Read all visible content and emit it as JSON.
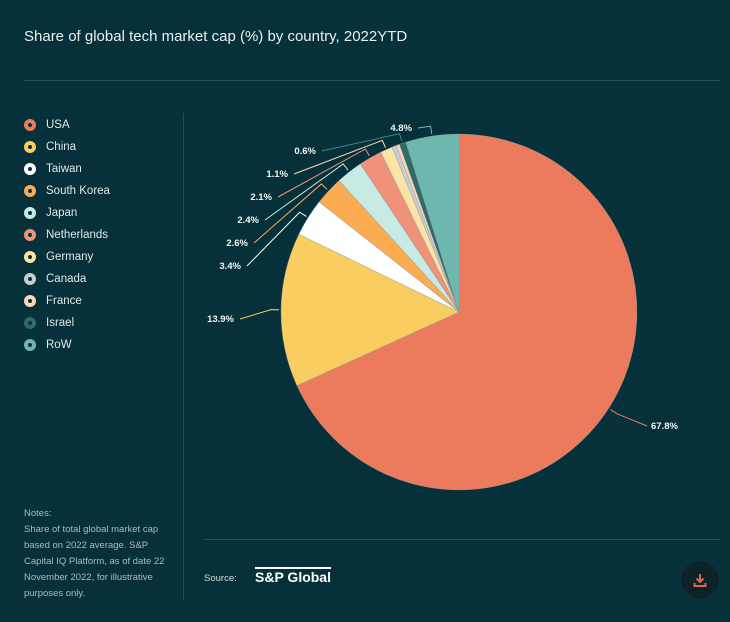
{
  "chart_data": {
    "type": "pie",
    "title": "Share of global tech market cap (%) by country, 2022YTD",
    "legend_position": "left",
    "slices": [
      {
        "name": "USA",
        "value": 67.8,
        "label": "67.8%",
        "color": "#ec7b5d"
      },
      {
        "name": "China",
        "value": 13.9,
        "label": "13.9%",
        "color": "#f9cd5f"
      },
      {
        "name": "Taiwan",
        "value": 3.4,
        "label": "3.4%",
        "color": "#ffffff"
      },
      {
        "name": "South Korea",
        "value": 2.6,
        "label": "2.6%",
        "color": "#fbab52"
      },
      {
        "name": "Japan",
        "value": 2.4,
        "label": "2.4%",
        "color": "#c5ebe4"
      },
      {
        "name": "Netherlands",
        "value": 2.1,
        "label": "2.1%",
        "color": "#f0917a"
      },
      {
        "name": "Germany",
        "value": 1.1,
        "label": "1.1%",
        "color": "#fde3a5"
      },
      {
        "name": "Canada",
        "value": 0.4,
        "label": "",
        "color": "#c7cfd3"
      },
      {
        "name": "France",
        "value": 0.3,
        "label": "",
        "color": "#fdd8b5"
      },
      {
        "name": "Israel",
        "value": 0.6,
        "label": "0.6%",
        "color": "#2f6b6a"
      },
      {
        "name": "RoW",
        "value": 4.8,
        "label": "4.8%",
        "color": "#6db8ae"
      }
    ]
  },
  "notes": {
    "heading": "Notes:",
    "text": "Share of total global market cap based on 2022 average. S&P Capital IQ Platform, as of date 22 November 2022, for illustrative purposes only."
  },
  "source": {
    "label": "Source:",
    "logo": "S&P Global"
  },
  "download": {
    "icon": "download-icon",
    "color": "#e0674c"
  }
}
